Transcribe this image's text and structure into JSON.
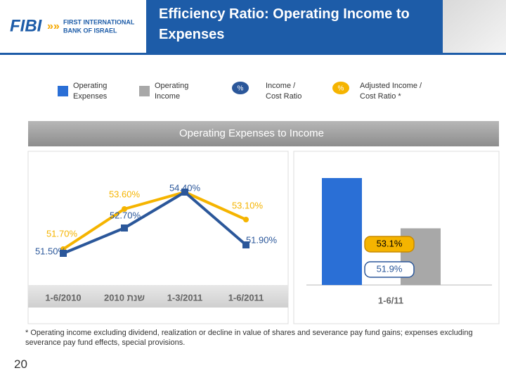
{
  "header": {
    "logo_mark": "FIBI",
    "logo_line1": "FIRST INTERNATIONAL",
    "logo_line2": "BANK OF ISRAEL"
  },
  "title": "Efficiency Ratio: Operating Income to Expenses",
  "section_title": "Operating Expenses to Income",
  "footnote": "* Operating income excluding dividend, realization or decline in value of shares and severance pay fund gains; expenses excluding severance pay fund effects, special provisions.",
  "page_number": "20",
  "chart_data": [
    {
      "type": "line",
      "categories": [
        "1-6/2010",
        "2010 שנת",
        "1-3/2011",
        "1-6/2011"
      ],
      "ylim": [
        50,
        56
      ],
      "series": [
        {
          "name": "Income / Cost Ratio",
          "marker_label": "%",
          "color": "#2b579a",
          "values": [
            51.5,
            52.7,
            54.4,
            51.9
          ],
          "value_labels": [
            "51.50%",
            "52.70%",
            "54.40%",
            "51.90%"
          ]
        },
        {
          "name": "Adjusted Income / Cost Ratio *",
          "marker_label": "%",
          "color": "#f5b400",
          "values": [
            51.7,
            53.6,
            54.4,
            53.1
          ],
          "value_labels": [
            "51.70%",
            "53.60%",
            null,
            "53.10%"
          ]
        }
      ]
    },
    {
      "type": "bar",
      "categories": [
        "1-6/11"
      ],
      "series": [
        {
          "name": "Operating Expenses",
          "color": "#2a6fd6",
          "values": [
            100
          ]
        },
        {
          "name": "Operating Income",
          "color": "#a8a8a8",
          "values": [
            53
          ]
        }
      ],
      "annotations": [
        {
          "text": "53.1%",
          "color": "#f5b400"
        },
        {
          "text": "51.9%",
          "color": "#2b579a"
        }
      ]
    }
  ]
}
